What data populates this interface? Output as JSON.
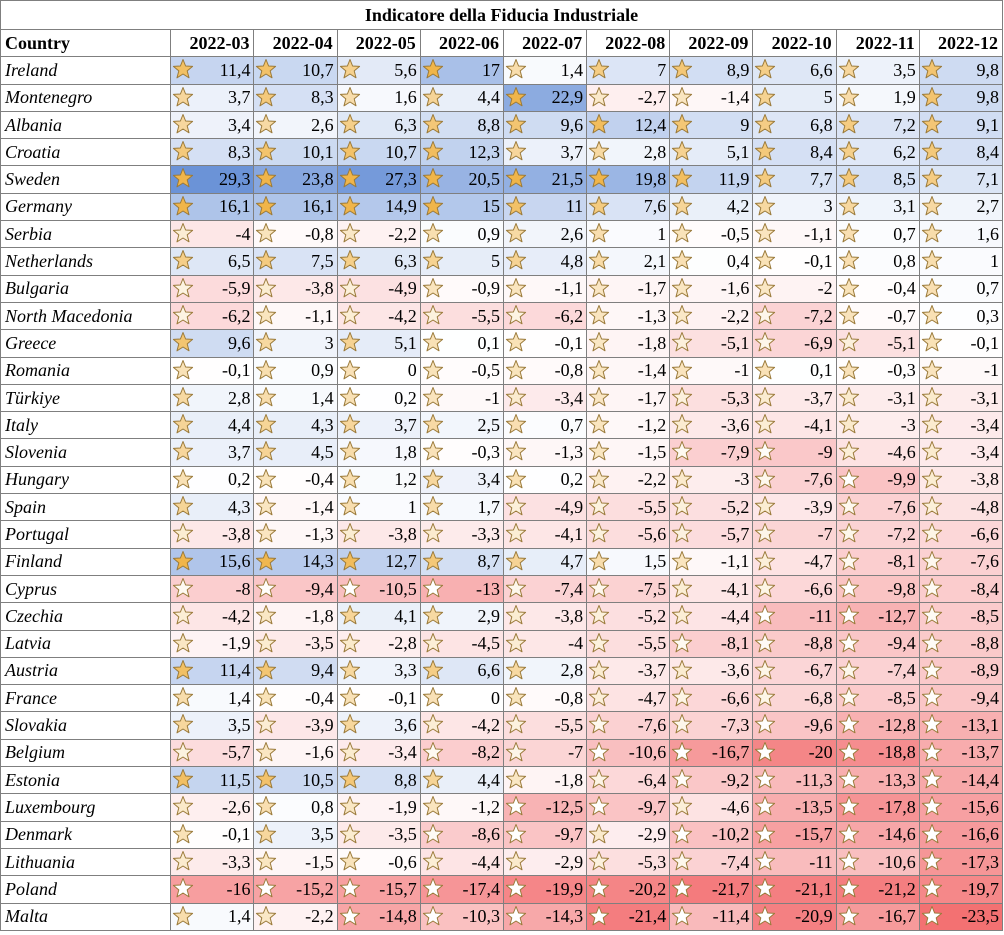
{
  "title": "Indicatore della Fiducia Industriale",
  "header": {
    "country_label": "Country",
    "months": [
      "2022-03",
      "2022-04",
      "2022-05",
      "2022-06",
      "2022-07",
      "2022-08",
      "2022-09",
      "2022-10",
      "2022-11",
      "2022-12"
    ]
  },
  "rows": [
    {
      "country": "Ireland",
      "values": [
        "11,4",
        "10,7",
        "5,6",
        "17",
        "1,4",
        "7",
        "8,9",
        "6,6",
        "3,5",
        "9,8"
      ]
    },
    {
      "country": "Montenegro",
      "values": [
        "3,7",
        "8,3",
        "1,6",
        "4,4",
        "22,9",
        "-2,7",
        "-1,4",
        "5",
        "1,9",
        "9,8"
      ]
    },
    {
      "country": "Albania",
      "values": [
        "3,4",
        "2,6",
        "6,3",
        "8,8",
        "9,6",
        "12,4",
        "9",
        "6,8",
        "7,2",
        "9,1"
      ]
    },
    {
      "country": "Croatia",
      "values": [
        "8,3",
        "10,1",
        "10,7",
        "12,3",
        "3,7",
        "2,8",
        "5,1",
        "8,4",
        "6,2",
        "8,4"
      ]
    },
    {
      "country": "Sweden",
      "values": [
        "29,3",
        "23,8",
        "27,3",
        "20,5",
        "21,5",
        "19,8",
        "11,9",
        "7,7",
        "8,5",
        "7,1"
      ]
    },
    {
      "country": "Germany",
      "values": [
        "16,1",
        "16,1",
        "14,9",
        "15",
        "11",
        "7,6",
        "4,2",
        "3",
        "3,1",
        "2,7"
      ]
    },
    {
      "country": "Serbia",
      "values": [
        "-4",
        "-0,8",
        "-2,2",
        "0,9",
        "2,6",
        "1",
        "-0,5",
        "-1,1",
        "0,7",
        "1,6"
      ]
    },
    {
      "country": "Netherlands",
      "values": [
        "6,5",
        "7,5",
        "6,3",
        "5",
        "4,8",
        "2,1",
        "0,4",
        "-0,1",
        "0,8",
        "1"
      ]
    },
    {
      "country": "Bulgaria",
      "values": [
        "-5,9",
        "-3,8",
        "-4,9",
        "-0,9",
        "-1,1",
        "-1,7",
        "-1,6",
        "-2",
        "-0,4",
        "0,7"
      ]
    },
    {
      "country": "North Macedonia",
      "values": [
        "-6,2",
        "-1,1",
        "-4,2",
        "-5,5",
        "-6,2",
        "-1,3",
        "-2,2",
        "-7,2",
        "-0,7",
        "0,3"
      ]
    },
    {
      "country": "Greece",
      "values": [
        "9,6",
        "3",
        "5,1",
        "0,1",
        "-0,1",
        "-1,8",
        "-5,1",
        "-6,9",
        "-5,1",
        "-0,1"
      ]
    },
    {
      "country": "Romania",
      "values": [
        "-0,1",
        "0,9",
        "0",
        "-0,5",
        "-0,8",
        "-1,4",
        "-1",
        "0,1",
        "-0,3",
        "-1"
      ]
    },
    {
      "country": "Türkiye",
      "values": [
        "2,8",
        "1,4",
        "0,2",
        "-1",
        "-3,4",
        "-1,7",
        "-5,3",
        "-3,7",
        "-3,1",
        "-3,1"
      ]
    },
    {
      "country": "Italy",
      "values": [
        "4,4",
        "4,3",
        "3,7",
        "2,5",
        "0,7",
        "-1,2",
        "-3,6",
        "-4,1",
        "-3",
        "-3,4"
      ]
    },
    {
      "country": "Slovenia",
      "values": [
        "3,7",
        "4,5",
        "1,8",
        "-0,3",
        "-1,3",
        "-1,5",
        "-7,9",
        "-9",
        "-4,6",
        "-3,4"
      ]
    },
    {
      "country": "Hungary",
      "values": [
        "0,2",
        "-0,4",
        "1,2",
        "3,4",
        "0,2",
        "-2,2",
        "-3",
        "-7,6",
        "-9,9",
        "-3,8"
      ]
    },
    {
      "country": "Spain",
      "values": [
        "4,3",
        "-1,4",
        "1",
        "1,7",
        "-4,9",
        "-5,5",
        "-5,2",
        "-3,9",
        "-7,6",
        "-4,8"
      ]
    },
    {
      "country": "Portugal",
      "values": [
        "-3,8",
        "-1,3",
        "-3,8",
        "-3,3",
        "-4,1",
        "-5,6",
        "-5,7",
        "-7",
        "-7,2",
        "-6,6"
      ]
    },
    {
      "country": "Finland",
      "values": [
        "15,6",
        "14,3",
        "12,7",
        "8,7",
        "4,7",
        "1,5",
        "-1,1",
        "-4,7",
        "-8,1",
        "-7,6"
      ]
    },
    {
      "country": "Cyprus",
      "values": [
        "-8",
        "-9,4",
        "-10,5",
        "-13",
        "-7,4",
        "-7,5",
        "-4,1",
        "-6,6",
        "-9,8",
        "-8,4"
      ]
    },
    {
      "country": "Czechia",
      "values": [
        "-4,2",
        "-1,8",
        "4,1",
        "2,9",
        "-3,8",
        "-5,2",
        "-4,4",
        "-11",
        "-12,7",
        "-8,5"
      ]
    },
    {
      "country": "Latvia",
      "values": [
        "-1,9",
        "-3,5",
        "-2,8",
        "-4,5",
        "-4",
        "-5,5",
        "-8,1",
        "-8,8",
        "-9,4",
        "-8,8"
      ]
    },
    {
      "country": "Austria",
      "values": [
        "11,4",
        "9,4",
        "3,3",
        "6,6",
        "2,8",
        "-3,7",
        "-3,6",
        "-6,7",
        "-7,4",
        "-8,9"
      ]
    },
    {
      "country": "France",
      "values": [
        "1,4",
        "-0,4",
        "-0,1",
        "0",
        "-0,8",
        "-4,7",
        "-6,6",
        "-6,8",
        "-8,5",
        "-9,4"
      ]
    },
    {
      "country": "Slovakia",
      "values": [
        "3,5",
        "-3,9",
        "3,6",
        "-4,2",
        "-5,5",
        "-7,6",
        "-7,3",
        "-9,6",
        "-12,8",
        "-13,1"
      ]
    },
    {
      "country": "Belgium",
      "values": [
        "-5,7",
        "-1,6",
        "-3,4",
        "-8,2",
        "-7",
        "-10,6",
        "-16,7",
        "-20",
        "-18,8",
        "-13,7"
      ]
    },
    {
      "country": "Estonia",
      "values": [
        "11,5",
        "10,5",
        "8,8",
        "4,4",
        "-1,8",
        "-6,4",
        "-9,2",
        "-11,3",
        "-13,3",
        "-14,4"
      ]
    },
    {
      "country": "Luxembourg",
      "values": [
        "-2,6",
        "0,8",
        "-1,9",
        "-1,2",
        "-12,5",
        "-9,7",
        "-4,6",
        "-13,5",
        "-17,8",
        "-15,6"
      ]
    },
    {
      "country": "Denmark",
      "values": [
        "-0,1",
        "3,5",
        "-3,5",
        "-8,6",
        "-9,7",
        "-2,9",
        "-10,2",
        "-15,7",
        "-14,6",
        "-16,6"
      ]
    },
    {
      "country": "Lithuania",
      "values": [
        "-3,3",
        "-1,5",
        "-0,6",
        "-4,4",
        "-2,9",
        "-5,3",
        "-7,4",
        "-11",
        "-10,6",
        "-17,3"
      ]
    },
    {
      "country": "Poland",
      "values": [
        "-16",
        "-15,2",
        "-15,7",
        "-17,4",
        "-19,9",
        "-20,2",
        "-21,7",
        "-21,1",
        "-21,2",
        "-19,7"
      ]
    },
    {
      "country": "Malta",
      "values": [
        "1,4",
        "-2,2",
        "-14,8",
        "-10,3",
        "-14,3",
        "-21,4",
        "-11,4",
        "-20,9",
        "-16,7",
        "-23,5"
      ]
    }
  ],
  "scale": {
    "positive_color": "#5b87d3",
    "neutral_color": "#ffffff",
    "negative_color": "#f2696b",
    "star_gold": "#f0b54a",
    "star_outline": "#9a7a3a"
  }
}
